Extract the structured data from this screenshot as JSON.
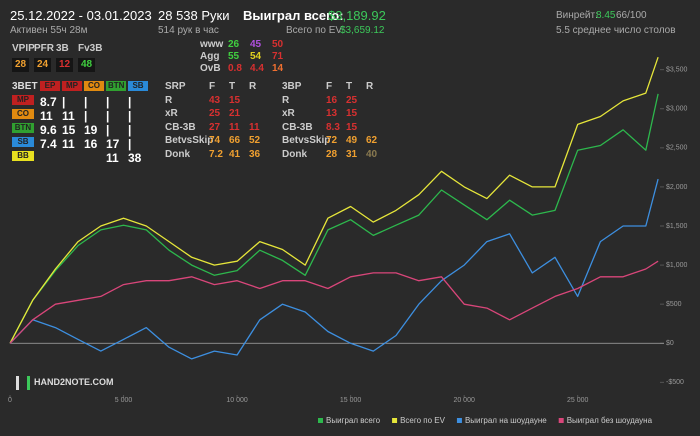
{
  "header": {
    "date_range": "25.12.2022 - 03.01.2023",
    "active": "Активен 55ч 28м",
    "hands": "28 538 Руки",
    "hands_per_hour": "514 рук в час",
    "won_label": "Выиграл всего:",
    "won_value": "$3,189.92",
    "ev_label": "Всего по EV:",
    "ev_value": "$3,659.12",
    "winrate_label": "Винрейт:",
    "winrate_value": "8.45",
    "winrate_unit": "66/100",
    "tables_avg": "5.5 среднее число столов"
  },
  "hud": {
    "tables": [
      {
        "columns": [
          "VPIP",
          "PFR",
          "3B",
          "Fv3B"
        ],
        "rows": [
          {
            "cells": [
              {
                "v": 28,
                "color": "#f0a030"
              },
              {
                "v": 24,
                "color": "#f0a030"
              },
              {
                "v": 12,
                "color": "#d83030"
              },
              {
                "v": 48,
                "color": "#40d040"
              }
            ]
          }
        ]
      },
      {
        "rows": [
          {
            "label": "www",
            "cells": [
              {
                "v": 26,
                "color": "#40d040"
              },
              {
                "v": 45,
                "color": "#b050e0"
              },
              {
                "v": 50,
                "color": "#d83030"
              }
            ]
          },
          {
            "label": "Agg",
            "cells": [
              {
                "v": 55,
                "color": "#40d040"
              },
              {
                "v": 54,
                "color": "#e0d020"
              },
              {
                "v": 71,
                "color": "#d83030"
              }
            ]
          },
          {
            "label": "OvB",
            "cells": [
              {
                "v": 0.8,
                "color": "#d83030"
              },
              {
                "v": 4.4,
                "color": "#d83030"
              },
              {
                "v": 14,
                "color": "#f07030"
              }
            ]
          }
        ]
      },
      {
        "title": "3BET",
        "columns": [
          {
            "text": "EP",
            "bg": "#c02020"
          },
          {
            "text": "MP",
            "bg": "#c02020"
          },
          {
            "text": "CO",
            "bg": "#e08a10"
          },
          {
            "text": "BTN",
            "bg": "#30a030"
          },
          {
            "text": "SB",
            "bg": "#2a8ad8"
          }
        ],
        "rows": [
          {
            "label": {
              "text": "MP",
              "bg": "#c02020"
            },
            "cells": [
              {
                "v": 8.7,
                "color": "#ffffff"
              },
              {
                "v": "|",
                "color": "#ffffff"
              },
              {
                "v": "|",
                "color": "#ffffff"
              },
              {
                "v": "|",
                "color": "#ffffff"
              },
              {
                "v": "|",
                "color": "#ffffff"
              }
            ]
          },
          {
            "label": {
              "text": "CO",
              "bg": "#e08a10"
            },
            "cells": [
              {
                "v": 11,
                "color": "#ffffff"
              },
              {
                "v": 11,
                "color": "#ffffff"
              },
              {
                "v": "|",
                "color": "#ffffff"
              },
              {
                "v": "|",
                "color": "#ffffff"
              },
              {
                "v": "|",
                "color": "#ffffff"
              }
            ]
          },
          {
            "label": {
              "text": "BTN",
              "bg": "#30a030"
            },
            "cells": [
              {
                "v": 9.6,
                "color": "#ffffff"
              },
              {
                "v": 15,
                "color": "#ffffff"
              },
              {
                "v": 19,
                "color": "#ffffff"
              },
              {
                "v": "|",
                "color": "#ffffff"
              },
              {
                "v": "|",
                "color": "#ffffff"
              }
            ]
          },
          {
            "label": {
              "text": "SB",
              "bg": "#2a8ad8"
            },
            "cells": [
              {
                "v": 7.4,
                "color": "#ffffff"
              },
              {
                "v": 11,
                "color": "#ffffff"
              },
              {
                "v": 16,
                "color": "#ffffff"
              },
              {
                "v": 17,
                "color": "#ffffff"
              },
              {
                "v": "|",
                "color": "#ffffff"
              }
            ]
          },
          {
            "label": {
              "text": "BB",
              "bg": "#e8e020"
            },
            "cells": [
              null,
              null,
              null,
              {
                "v": 11,
                "color": "#ffffff"
              },
              {
                "v": 38,
                "color": "#ffffff"
              }
            ]
          }
        ]
      },
      {
        "columns": [
          "SRP",
          "F",
          "T",
          "R"
        ],
        "rows": [
          {
            "label": "R",
            "cells": [
              {
                "v": 43,
                "color": "#d83030"
              },
              {
                "v": 15,
                "color": "#d83030"
              }
            ]
          },
          {
            "label": "xR",
            "cells": [
              {
                "v": 25,
                "color": "#d83030"
              },
              {
                "v": 21,
                "color": "#d83030"
              }
            ]
          },
          {
            "label": "CB-3B",
            "cells": [
              {
                "v": 27,
                "color": "#d83030"
              },
              {
                "v": 11,
                "color": "#d83030"
              },
              {
                "v": 11,
                "color": "#d83030"
              }
            ]
          },
          {
            "label": "BetvsSkip",
            "cells": [
              {
                "v": 74,
                "color": "#f0a030"
              },
              {
                "v": 66,
                "color": "#f0a030"
              },
              {
                "v": 52,
                "color": "#f0a030"
              }
            ]
          },
          {
            "label": "Donk",
            "cells": [
              {
                "v": 7.2,
                "color": "#f0a030"
              },
              {
                "v": 41,
                "color": "#f0a030"
              },
              {
                "v": 36,
                "color": "#f0a030"
              }
            ]
          }
        ]
      },
      {
        "columns": [
          "3BP",
          "F",
          "T",
          "R"
        ],
        "rows": [
          {
            "label": "R",
            "cells": [
              {
                "v": 16,
                "color": "#d83030"
              },
              {
                "v": 25,
                "color": "#d83030"
              }
            ]
          },
          {
            "label": "xR",
            "cells": [
              {
                "v": 13,
                "color": "#d83030"
              },
              {
                "v": 15,
                "color": "#d83030"
              }
            ]
          },
          {
            "label": "CB-3B",
            "cells": [
              {
                "v": 8.3,
                "color": "#d83030"
              },
              {
                "v": 15,
                "color": "#d83030"
              }
            ]
          },
          {
            "label": "BetvsSkip",
            "cells": [
              {
                "v": 72,
                "color": "#f0a030"
              },
              {
                "v": 49,
                "color": "#f0a030"
              },
              {
                "v": 62,
                "color": "#f0a030"
              }
            ]
          },
          {
            "label": "Donk",
            "cells": [
              {
                "v": 28,
                "color": "#f0a030"
              },
              {
                "v": 31,
                "color": "#f0a030"
              },
              {
                "v": 40,
                "color": "#8a7a50"
              }
            ]
          }
        ]
      }
    ]
  },
  "logo": "HAND2NOTE.COM",
  "chart_data": {
    "type": "line",
    "x": [
      0,
      1000,
      2000,
      3000,
      4000,
      5000,
      6000,
      7000,
      8000,
      9000,
      10000,
      11000,
      12000,
      13000,
      14000,
      15000,
      16000,
      17000,
      18000,
      19000,
      20000,
      21000,
      22000,
      23000,
      24000,
      25000,
      26000,
      27000,
      28000,
      28538
    ],
    "series": [
      {
        "name": "Выиграл всего",
        "color": "#2db84d",
        "values": [
          0,
          550,
          930,
          1250,
          1450,
          1510,
          1450,
          1190,
          1000,
          870,
          930,
          1190,
          1060,
          870,
          1450,
          1580,
          1380,
          1510,
          1640,
          1960,
          1770,
          1580,
          1830,
          1640,
          1700,
          2470,
          2530,
          2730,
          2470,
          3190
        ]
      },
      {
        "name": "Всего по EV",
        "color": "#e6e63a",
        "values": [
          0,
          550,
          950,
          1300,
          1500,
          1600,
          1500,
          1300,
          1100,
          1000,
          1050,
          1300,
          1200,
          1000,
          1600,
          1750,
          1550,
          1700,
          1900,
          2200,
          2000,
          1850,
          2150,
          2000,
          2000,
          2800,
          2900,
          3100,
          3200,
          3659
        ]
      },
      {
        "name": "Выиграл на шоудауне",
        "color": "#3d8fe0",
        "values": [
          0,
          300,
          200,
          50,
          -100,
          50,
          200,
          -50,
          -200,
          -100,
          -150,
          300,
          500,
          400,
          150,
          0,
          -100,
          100,
          500,
          800,
          1000,
          1300,
          1400,
          900,
          1100,
          600,
          1300,
          1500,
          1500,
          2100
        ]
      },
      {
        "name": "Выиграл без шоудауна",
        "color": "#d9467a",
        "values": [
          0,
          300,
          500,
          550,
          600,
          750,
          800,
          800,
          850,
          750,
          800,
          700,
          800,
          800,
          700,
          850,
          900,
          900,
          800,
          850,
          500,
          450,
          300,
          450,
          600,
          700,
          850,
          850,
          950,
          1050
        ]
      }
    ],
    "xlim": [
      0,
      28800
    ],
    "xticks": [
      0,
      {
        "value": 5000,
        "label": "5 000"
      },
      {
        "value": 10000,
        "label": "10 000"
      },
      {
        "value": 15000,
        "label": "15 000"
      },
      {
        "value": 20000,
        "label": "20 000"
      },
      {
        "value": 25000,
        "label": "25 000"
      }
    ],
    "ylim": [
      -700,
      3700
    ],
    "yticks": [
      {
        "value": -500,
        "label": "-$500"
      },
      {
        "value": 0,
        "label": "$0"
      },
      {
        "value": 500,
        "label": "$500"
      },
      {
        "value": 1000,
        "label": "$1,000"
      },
      {
        "value": 1500,
        "label": "$1,500"
      },
      {
        "value": 2000,
        "label": "$2,000"
      },
      {
        "value": 2500,
        "label": "$2,500"
      },
      {
        "value": 3000,
        "label": "$3,000"
      },
      {
        "value": 3500,
        "label": "$3,500"
      }
    ]
  }
}
